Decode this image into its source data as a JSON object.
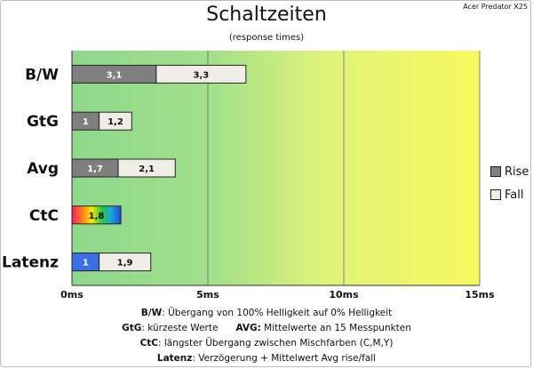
{
  "header": {
    "title": "Schaltzeiten",
    "subtitle": "(response times)",
    "monitor": "Acer Predator X25"
  },
  "chart_data": {
    "type": "bar",
    "orientation": "horizontal",
    "stacked": true,
    "categories": [
      "B/W",
      "GtG",
      "Avg",
      "CtC",
      "Latenz"
    ],
    "series": [
      {
        "name": "Rise",
        "values": [
          3.1,
          1,
          1.7,
          null,
          1
        ],
        "labels": [
          "3,1",
          "1",
          "1,7",
          "",
          "1"
        ]
      },
      {
        "name": "Fall",
        "values": [
          3.3,
          1.2,
          2.1,
          null,
          1.9
        ],
        "labels": [
          "3,3",
          "1,2",
          "2,1",
          "",
          "1,9"
        ]
      }
    ],
    "ctc_value": 1.8,
    "ctc_label": "1,8",
    "x_ticks": [
      0,
      5,
      10,
      15
    ],
    "x_tick_labels": [
      "0ms",
      "5ms",
      "10ms",
      "15ms"
    ],
    "xlim": [
      0,
      15
    ],
    "grid": true,
    "legend_position": "right",
    "colors": {
      "rise": "#7f7f7f",
      "fall": "#efede6",
      "latenz_rise": "#3a6fe6",
      "bg_left": "#8ed88c",
      "bg_mid": "#c9ef8a",
      "bg_right": "#f6f860"
    }
  },
  "legend": {
    "rise": "Rise",
    "fall": "Fall"
  },
  "notes": {
    "bw_key": "B/W",
    "bw_text": ":  Übergang von 100% Helligkeit auf 0% Helligkeit",
    "gtg_key": "GtG",
    "gtg_text": ": kürzeste  Werte",
    "avg_key": "AVG:",
    "avg_text": " Mittelwerte  an 15 Messpunkten",
    "ctc_key": "CtC",
    "ctc_text": ": längster Übergang  zwischen Mischfarben  (C,M,Y)",
    "lat_key": "Latenz",
    "lat_text": ": Verzögerung  + Mittelwert Avg rise/fall"
  }
}
